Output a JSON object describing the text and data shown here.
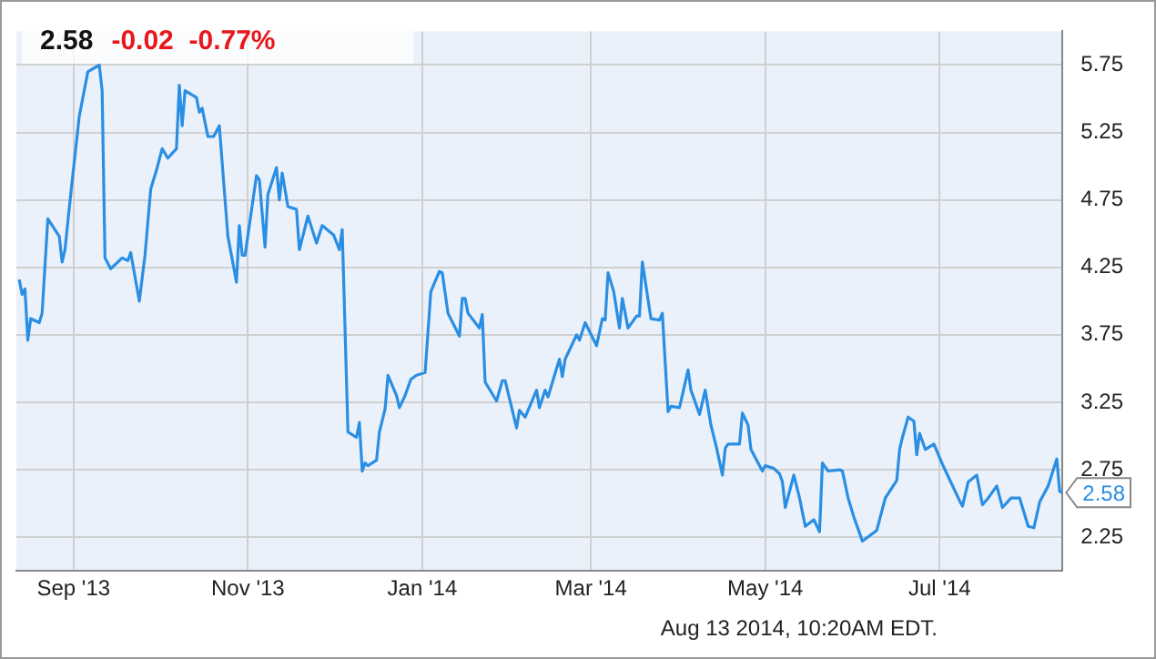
{
  "chart_data": {
    "type": "line",
    "title": "2.58",
    "subtitle": "-0.02  -0.77%",
    "annotations": [
      {
        "text": "2.58",
        "x": "2014-08-13",
        "y": 2.58
      },
      "Aug 13 2014, 10:20AM EDT."
    ],
    "xlim": [
      "2013-08-12",
      "2014-08-13"
    ],
    "xticks": [
      {
        "value": "2013-09-01",
        "label": "Sep '13"
      },
      {
        "value": "2013-11-01",
        "label": "Nov '13"
      },
      {
        "value": "2014-01-01",
        "label": "Jan '14"
      },
      {
        "value": "2014-03-01",
        "label": "Mar '14"
      },
      {
        "value": "2014-05-01",
        "label": "May '14"
      },
      {
        "value": "2014-07-01",
        "label": "Jul '14"
      }
    ],
    "ylim": [
      2.0,
      6.0
    ],
    "yticks": [
      2.25,
      2.75,
      3.25,
      3.75,
      4.25,
      4.75,
      5.25,
      5.75
    ],
    "grid": true,
    "legend": false,
    "marker": "none",
    "line_style": "solid",
    "series": [
      {
        "color": "#2a8ee3",
        "x": [
          "2013-08-13",
          "2013-08-14",
          "2013-08-15",
          "2013-08-16",
          "2013-08-17",
          "2013-08-20",
          "2013-08-21",
          "2013-08-23",
          "2013-08-27",
          "2013-08-28",
          "2013-08-29",
          "2013-08-31",
          "2013-09-03",
          "2013-09-06",
          "2013-09-10",
          "2013-09-11",
          "2013-09-12",
          "2013-09-14",
          "2013-09-16",
          "2013-09-18",
          "2013-09-20",
          "2013-09-21",
          "2013-09-24",
          "2013-09-26",
          "2013-09-28",
          "2013-09-30",
          "2013-10-02",
          "2013-10-04",
          "2013-10-07",
          "2013-10-08",
          "2013-10-09",
          "2013-10-10",
          "2013-10-14",
          "2013-10-15",
          "2013-10-16",
          "2013-10-18",
          "2013-10-20",
          "2013-10-22",
          "2013-10-25",
          "2013-10-28",
          "2013-10-29",
          "2013-10-30",
          "2013-10-31",
          "2013-11-04",
          "2013-11-05",
          "2013-11-07",
          "2013-11-08",
          "2013-11-11",
          "2013-11-12",
          "2013-11-13",
          "2013-11-15",
          "2013-11-18",
          "2013-11-19",
          "2013-11-22",
          "2013-11-25",
          "2013-11-27",
          "2013-12-01",
          "2013-12-03",
          "2013-12-04",
          "2013-12-06",
          "2013-12-09",
          "2013-12-10",
          "2013-12-11",
          "2013-12-12",
          "2013-12-13",
          "2013-12-16",
          "2013-12-17",
          "2013-12-19",
          "2013-12-20",
          "2013-12-23",
          "2013-12-24",
          "2013-12-26",
          "2013-12-28",
          "2013-12-30",
          "2014-01-02",
          "2014-01-04",
          "2014-01-07",
          "2014-01-08",
          "2014-01-10",
          "2014-01-14",
          "2014-01-15",
          "2014-01-16",
          "2014-01-17",
          "2014-01-21",
          "2014-01-22",
          "2014-01-23",
          "2014-01-27",
          "2014-01-29",
          "2014-01-30",
          "2014-02-03",
          "2014-02-04",
          "2014-02-06",
          "2014-02-10",
          "2014-02-11",
          "2014-02-13",
          "2014-02-14",
          "2014-02-18",
          "2014-02-19",
          "2014-02-20",
          "2014-02-24",
          "2014-02-25",
          "2014-02-27",
          "2014-03-03",
          "2014-03-05",
          "2014-03-06",
          "2014-03-07",
          "2014-03-09",
          "2014-03-11",
          "2014-03-12",
          "2014-03-14",
          "2014-03-17",
          "2014-03-18",
          "2014-03-19",
          "2014-03-22",
          "2014-03-25",
          "2014-03-26",
          "2014-03-28",
          "2014-03-29",
          "2014-04-01",
          "2014-04-04",
          "2014-04-05",
          "2014-04-08",
          "2014-04-10",
          "2014-04-12",
          "2014-04-14",
          "2014-04-16",
          "2014-04-17",
          "2014-04-18",
          "2014-04-22",
          "2014-04-23",
          "2014-04-25",
          "2014-04-26",
          "2014-04-30",
          "2014-05-01",
          "2014-05-04",
          "2014-05-06",
          "2014-05-07",
          "2014-05-08",
          "2014-05-11",
          "2014-05-13",
          "2014-05-15",
          "2014-05-18",
          "2014-05-20",
          "2014-05-21",
          "2014-05-23",
          "2014-05-27",
          "2014-05-28",
          "2014-05-30",
          "2014-06-01",
          "2014-06-04",
          "2014-06-09",
          "2014-06-12",
          "2014-06-16",
          "2014-06-17",
          "2014-06-18",
          "2014-06-20",
          "2014-06-22",
          "2014-06-23",
          "2014-06-24",
          "2014-06-26",
          "2014-06-29",
          "2014-07-02",
          "2014-07-04",
          "2014-07-08",
          "2014-07-09",
          "2014-07-11",
          "2014-07-14",
          "2014-07-16",
          "2014-07-18",
          "2014-07-21",
          "2014-07-23",
          "2014-07-26",
          "2014-07-29",
          "2014-08-01",
          "2014-08-03",
          "2014-08-05",
          "2014-08-08",
          "2014-08-11",
          "2014-08-12",
          "2014-08-13"
        ],
        "values": [
          4.16,
          4.05,
          4.09,
          3.71,
          3.87,
          3.84,
          3.91,
          4.61,
          4.48,
          4.29,
          4.38,
          4.79,
          5.37,
          5.7,
          5.75,
          5.56,
          4.32,
          4.24,
          4.28,
          4.32,
          4.3,
          4.36,
          4.0,
          4.34,
          4.83,
          4.97,
          5.13,
          5.06,
          5.13,
          5.6,
          5.3,
          5.56,
          5.51,
          5.4,
          5.43,
          5.22,
          5.22,
          5.3,
          4.48,
          4.14,
          4.56,
          4.34,
          4.34,
          4.93,
          4.9,
          4.4,
          4.79,
          4.99,
          4.75,
          4.95,
          4.7,
          4.68,
          4.38,
          4.63,
          4.43,
          4.56,
          4.49,
          4.38,
          4.53,
          3.03,
          2.99,
          3.1,
          2.74,
          2.8,
          2.78,
          2.82,
          3.03,
          3.2,
          3.45,
          3.3,
          3.21,
          3.3,
          3.42,
          3.45,
          3.47,
          4.07,
          4.22,
          4.21,
          3.91,
          3.74,
          4.02,
          4.02,
          3.91,
          3.8,
          3.9,
          3.4,
          3.26,
          3.41,
          3.41,
          3.06,
          3.19,
          3.14,
          3.34,
          3.21,
          3.34,
          3.29,
          3.57,
          3.44,
          3.57,
          3.75,
          3.71,
          3.84,
          3.67,
          3.87,
          3.86,
          4.21,
          4.07,
          3.8,
          4.02,
          3.8,
          3.89,
          3.89,
          4.29,
          3.87,
          3.86,
          3.91,
          3.18,
          3.22,
          3.21,
          3.49,
          3.34,
          3.16,
          3.34,
          3.08,
          2.91,
          2.71,
          2.91,
          2.94,
          2.94,
          3.17,
          3.08,
          2.9,
          2.74,
          2.78,
          2.76,
          2.72,
          2.66,
          2.47,
          2.71,
          2.54,
          2.33,
          2.38,
          2.29,
          2.8,
          2.74,
          2.75,
          2.74,
          2.54,
          2.4,
          2.22,
          2.3,
          2.54,
          2.67,
          2.9,
          2.99,
          3.14,
          3.11,
          2.86,
          3.02,
          2.9,
          2.94,
          2.79,
          2.7,
          2.52,
          2.48,
          2.66,
          2.71,
          2.49,
          2.54,
          2.63,
          2.47,
          2.54,
          2.54,
          2.33,
          2.32,
          2.51,
          2.63,
          2.83,
          2.59,
          2.58
        ]
      }
    ]
  }
}
